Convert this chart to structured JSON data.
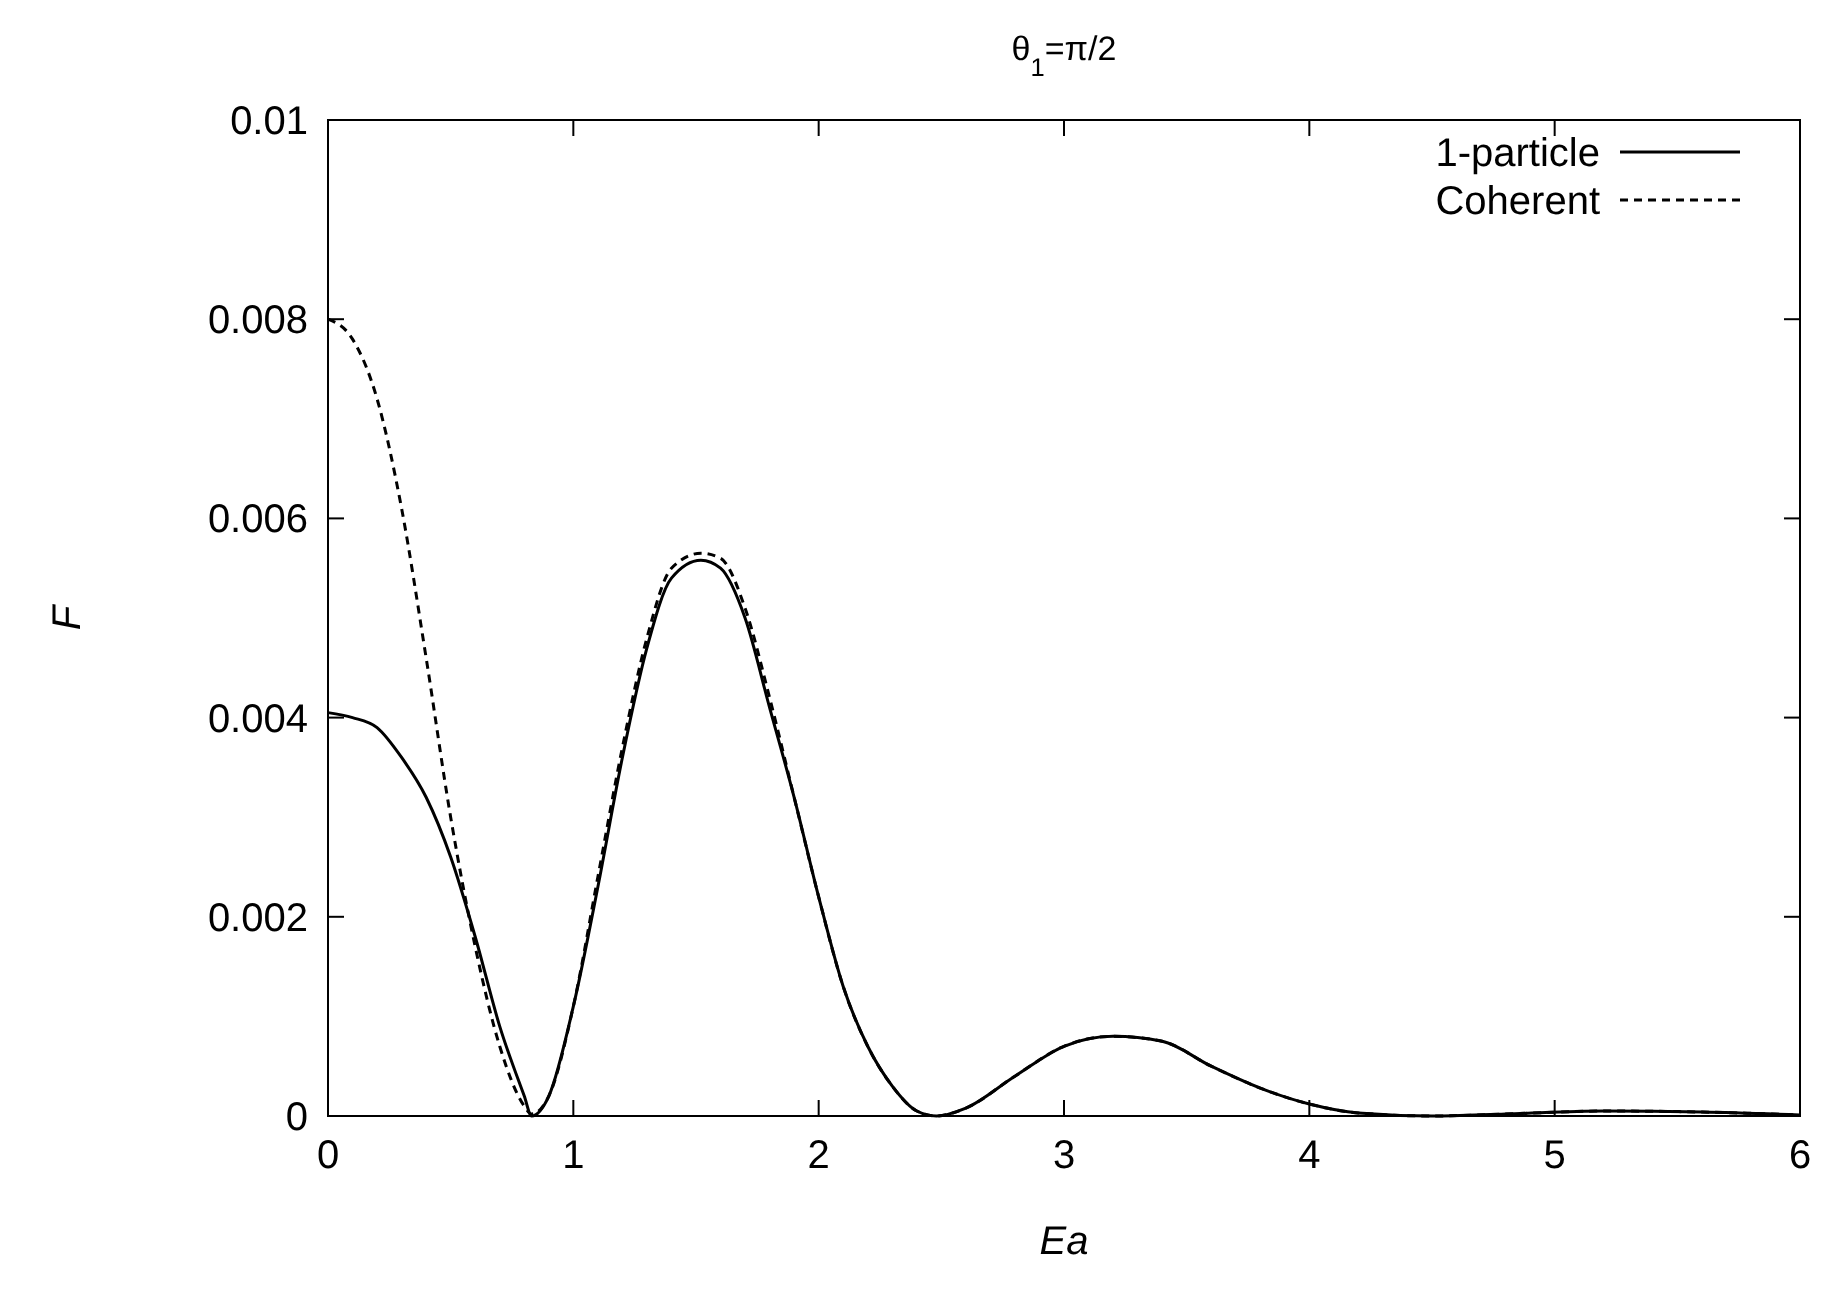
{
  "chart_data": {
    "type": "line",
    "title": "θ$_{1}$=π/2",
    "xlabel": "Ea",
    "ylabel": "F",
    "xlim": [
      0,
      6
    ],
    "ylim": [
      0,
      0.01
    ],
    "xticks": [
      0,
      1,
      2,
      3,
      4,
      5,
      6
    ],
    "yticks": [
      0,
      0.002,
      0.004,
      0.006,
      0.008,
      0.01
    ],
    "grid": false,
    "legend": "top right",
    "marker": "none",
    "x": [
      0,
      0.1,
      0.2,
      0.3,
      0.4,
      0.5,
      0.6,
      0.7,
      0.8,
      0.83,
      0.9,
      1.0,
      1.1,
      1.2,
      1.3,
      1.4,
      1.52,
      1.6,
      1.7,
      1.8,
      1.9,
      2.0,
      2.1,
      2.2,
      2.3,
      2.4,
      2.48,
      2.6,
      2.8,
      3.0,
      3.2,
      3.4,
      3.6,
      3.8,
      4.0,
      4.2,
      4.5,
      4.8,
      5.2,
      5.6,
      6.0
    ],
    "series": [
      {
        "name": "1-particle",
        "color": "#000000",
        "line_style": "solid",
        "values": [
          0.00405,
          0.004,
          0.0039,
          0.0036,
          0.0032,
          0.0026,
          0.0018,
          0.0009,
          0.0002,
          0,
          0.0002,
          0.0011,
          0.0023,
          0.0036,
          0.0047,
          0.0054,
          0.00558,
          0.0055,
          0.005,
          0.0041,
          0.0032,
          0.0022,
          0.0013,
          0.0007,
          0.0003,
          5e-05,
          0,
          8e-05,
          0.0004,
          0.0007,
          0.0008,
          0.00075,
          0.0005,
          0.00028,
          0.00012,
          3e-05,
          0,
          2e-05,
          5e-05,
          4e-05,
          1e-05
        ]
      },
      {
        "name": "Coherent",
        "color": "#000000",
        "line_style": "dashed",
        "values": [
          0.008,
          0.0078,
          0.0072,
          0.0061,
          0.0046,
          0.003,
          0.0017,
          0.0007,
          0.0001,
          2e-05,
          0.0002,
          0.0011,
          0.0024,
          0.0037,
          0.0048,
          0.0055,
          0.00565,
          0.0056,
          0.0051,
          0.0042,
          0.0032,
          0.0022,
          0.0013,
          0.0007,
          0.0003,
          5e-05,
          0,
          8e-05,
          0.0004,
          0.0007,
          0.0008,
          0.00075,
          0.0005,
          0.00028,
          0.00012,
          3e-05,
          0,
          2e-05,
          5e-05,
          4e-05,
          1e-05
        ]
      }
    ]
  }
}
